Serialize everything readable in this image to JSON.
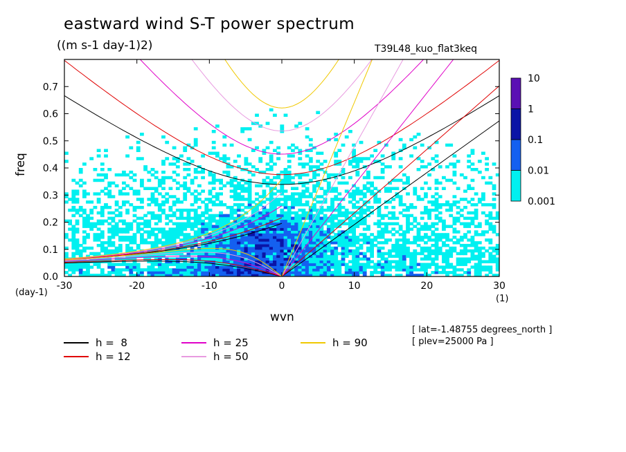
{
  "header": {
    "title": "eastward wind S-T power spectrum",
    "subtitle": "((m s-1 day-1)2)",
    "run_id": "T39L48_kuo_flat3keq"
  },
  "meta": {
    "lat": "[ lat=-1.48755 degrees_north ]",
    "plev": "[ plev=25000 Pa ]"
  },
  "chart_data": {
    "type": "heatmap",
    "title": "eastward wind S-T power spectrum",
    "units": "((m s-1 day-1)2)",
    "xlabel": "wvn",
    "ylabel": "freq",
    "x_unit": "(1)",
    "y_unit": "(day-1)",
    "xlim": [
      -30,
      30
    ],
    "ylim": [
      0,
      0.8
    ],
    "xticks": [
      "-30",
      "-20",
      "-10",
      "0",
      "10",
      "20",
      "30"
    ],
    "yticks": [
      "0.0",
      "0.1",
      "0.2",
      "0.3",
      "0.4",
      "0.5",
      "0.6",
      "0.7"
    ],
    "colorbar": {
      "levels": [
        "10",
        "1",
        "0.1",
        "0.01",
        "0.001"
      ],
      "colors": [
        "#5a10b4",
        "#0a14a6",
        "#1460f0",
        "#00f0f0"
      ]
    },
    "dispersion_curves": [
      {
        "label": "h =  8",
        "h": 8,
        "color": "#000000"
      },
      {
        "label": "h = 12",
        "h": 12,
        "color": "#e00000"
      },
      {
        "label": "h = 25",
        "h": 25,
        "color": "#e000c8"
      },
      {
        "label": "h = 50",
        "h": 50,
        "color": "#e89ae0"
      },
      {
        "label": "h = 90",
        "h": 90,
        "color": "#f0c800"
      }
    ]
  }
}
